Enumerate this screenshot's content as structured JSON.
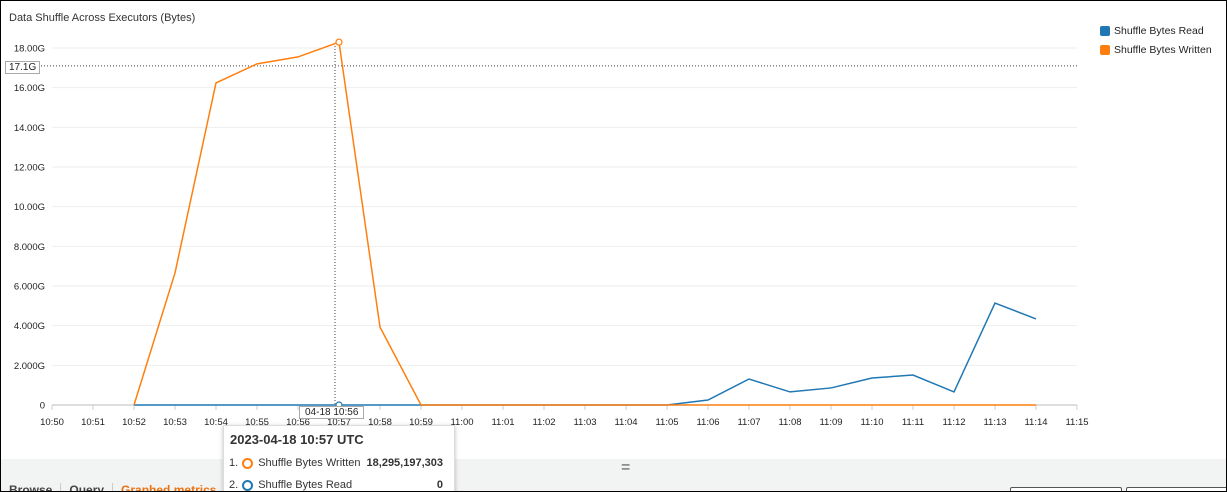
{
  "chart_data": {
    "type": "line",
    "title": "Data Shuffle Across Executors (Bytes)",
    "x_ticks": [
      "10:50",
      "10:51",
      "10:52",
      "10:53",
      "10:54",
      "10:55",
      "10:56",
      "10:57",
      "10:58",
      "10:59",
      "11:00",
      "11:01",
      "11:02",
      "11:03",
      "11:04",
      "11:05",
      "11:06",
      "11:07",
      "11:08",
      "11:09",
      "11:10",
      "11:11",
      "11:12",
      "11:13",
      "11:14",
      "11:15"
    ],
    "y_ticks": [
      "0",
      "2.000G",
      "4.000G",
      "6.000G",
      "8.000G",
      "10.00G",
      "12.00G",
      "14.00G",
      "16.00G",
      "18.00G"
    ],
    "ylim_G": [
      0,
      18
    ],
    "grid": "horizontal",
    "legend_position": "top-right",
    "x": [
      "10:52",
      "10:53",
      "10:54",
      "10:55",
      "10:56",
      "10:57",
      "10:58",
      "10:59",
      "11:00",
      "11:01",
      "11:02",
      "11:03",
      "11:04",
      "11:05",
      "11:06",
      "11:07",
      "11:08",
      "11:09",
      "11:10",
      "11:11",
      "11:12",
      "11:13",
      "11:14"
    ],
    "series": [
      {
        "name": "Shuffle Bytes Read",
        "color": "#1f77b4",
        "values_G": [
          0,
          0,
          0,
          0,
          0,
          0,
          0,
          0,
          0,
          0,
          0,
          0,
          0,
          0,
          0.25,
          1.31,
          0.66,
          0.86,
          1.36,
          1.51,
          0.66,
          5.14,
          4.34
        ]
      },
      {
        "name": "Shuffle Bytes Written",
        "color": "#ff7f0e",
        "values_G": [
          0,
          6.66,
          16.24,
          17.2,
          17.55,
          18.295,
          3.93,
          0,
          0,
          0,
          0,
          0,
          0,
          0,
          0,
          0,
          0,
          0,
          0,
          0,
          0,
          0,
          0
        ]
      }
    ]
  },
  "hover": {
    "y_label": "17.1G",
    "x_label": "04-18 10:56",
    "tooltip_title": "2023-04-18 10:57 UTC",
    "rows": [
      {
        "index": "1.",
        "name": "Shuffle Bytes Written",
        "value": "18,295,197,303",
        "color": "#ff7f0e"
      },
      {
        "index": "2.",
        "name": "Shuffle Bytes Read",
        "value": "0",
        "color": "#1f77b4"
      }
    ]
  },
  "tabs": {
    "browse": "Browse",
    "query": "Query",
    "graphed": "Graphed metrics"
  },
  "grip": "="
}
